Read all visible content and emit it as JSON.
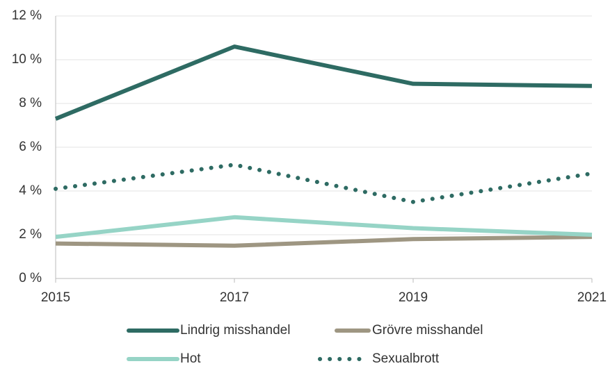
{
  "chart_data": {
    "type": "line",
    "x": [
      2015,
      2017,
      2019,
      2021
    ],
    "xlim": [
      2015,
      2021
    ],
    "xticks": [
      2015,
      2017,
      2019,
      2021
    ],
    "ylim": [
      0,
      12
    ],
    "yticks": [
      {
        "value": 0,
        "label": "0 %"
      },
      {
        "value": 2,
        "label": "2 %"
      },
      {
        "value": 4,
        "label": "4 %"
      },
      {
        "value": 6,
        "label": "6 %"
      },
      {
        "value": 8,
        "label": "8 %"
      },
      {
        "value": 10,
        "label": "10 %"
      },
      {
        "value": 12,
        "label": "12 %"
      }
    ],
    "grid": true,
    "legend": "bottom",
    "series": [
      {
        "name": "Lindrig misshandel",
        "color": "#2e6b63",
        "values": [
          7.3,
          10.6,
          8.9,
          8.8
        ]
      },
      {
        "name": "Grövre misshandel",
        "color": "#9e9682",
        "values": [
          1.6,
          1.5,
          1.8,
          1.9
        ]
      },
      {
        "name": "Hot",
        "color": "#96d4c6",
        "values": [
          1.9,
          2.8,
          2.3,
          2.0
        ]
      },
      {
        "name": "Sexualbrott",
        "color": "#2e6b63",
        "dash": "dotted",
        "values": [
          4.1,
          5.2,
          3.5,
          4.8
        ]
      }
    ]
  }
}
